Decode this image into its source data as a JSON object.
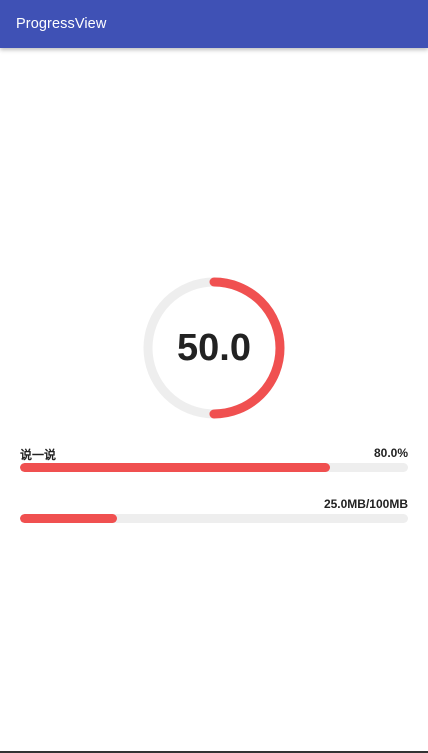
{
  "appbar": {
    "title": "ProgressView",
    "color": "#3f51b5"
  },
  "ring_progress": {
    "value_text": "50.0",
    "progress_percent": 50,
    "fill_color": "#f05050",
    "track_color": "#eeeeee"
  },
  "labeled_bar": {
    "label": "说一说",
    "readout": "80.0%",
    "progress_percent": 80
  },
  "download_bar": {
    "readout": "25.0MB/100MB",
    "progress_percent": 25
  },
  "colors": {
    "fill": "#f05050",
    "track": "#eeeeee"
  }
}
